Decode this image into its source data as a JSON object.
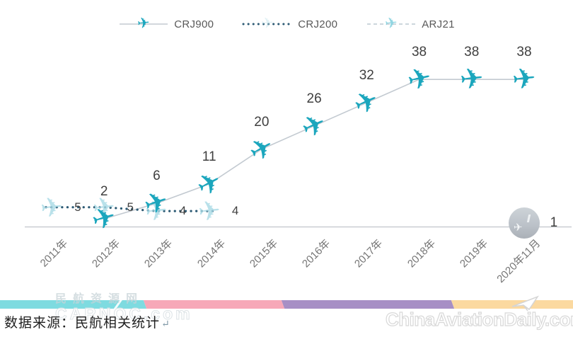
{
  "legend": [
    {
      "label": "CRJ900",
      "line": "solid",
      "line_color": "#c3cad1",
      "marker_color": "#1ba6bd",
      "marker_opacity": 1
    },
    {
      "label": "CRJ200",
      "line": "dotted",
      "line_color": "#2c5a74",
      "marker_color": "#bfe2ea",
      "marker_opacity": 0.45
    },
    {
      "label": "ARJ21",
      "line": "dashed",
      "line_color": "#c6d0d8",
      "marker_color": "#7fcfdd",
      "marker_opacity": 0.85
    }
  ],
  "chart_data": {
    "type": "line",
    "title": "",
    "xlabel": "",
    "ylabel": "",
    "ylim": [
      0,
      44
    ],
    "grid": false,
    "legend_position": "top",
    "categories": [
      "2011年",
      "2012年",
      "2013年",
      "2014年",
      "2015年",
      "2016年",
      "2017年",
      "2018年",
      "2019年",
      "2020年11月"
    ],
    "series": [
      {
        "name": "CRJ900",
        "marker": "plane-teal",
        "line": "solid",
        "values": [
          null,
          2,
          6,
          11,
          20,
          26,
          32,
          38,
          38,
          38
        ]
      },
      {
        "name": "CRJ200",
        "marker": "plane-pale",
        "line": "dotted",
        "values": [
          5,
          5,
          4,
          4,
          null,
          null,
          null,
          null,
          null,
          null
        ]
      },
      {
        "name": "ARJ21",
        "marker": "photo-circle",
        "line": "dashed",
        "values": [
          null,
          null,
          null,
          null,
          null,
          null,
          null,
          null,
          null,
          1
        ]
      }
    ],
    "colors": {
      "crj900_plane": "#1ba6bd",
      "crj200_plane": "#a8dae6",
      "crj900_line": "#c3cad1",
      "crj200_line": "#2c5a74",
      "arj21_line": "#c6d0d8",
      "axis_line": "#c9cdd1",
      "label_text": "#3f3f3f",
      "tick_text": "#757575"
    }
  },
  "source_note": {
    "text": "数据来源：民航相关统计",
    "return_mark": "↵"
  },
  "watermarks": {
    "carnoc_line1": "民航资源网",
    "carnoc_line2": "CARNOC.com",
    "aviation_daily": "ChinaAviationDaily.com"
  },
  "footer_stripe_colors": [
    "#7edbe0",
    "#f7a8b8",
    "#a78fc5",
    "#fbd9a0"
  ]
}
